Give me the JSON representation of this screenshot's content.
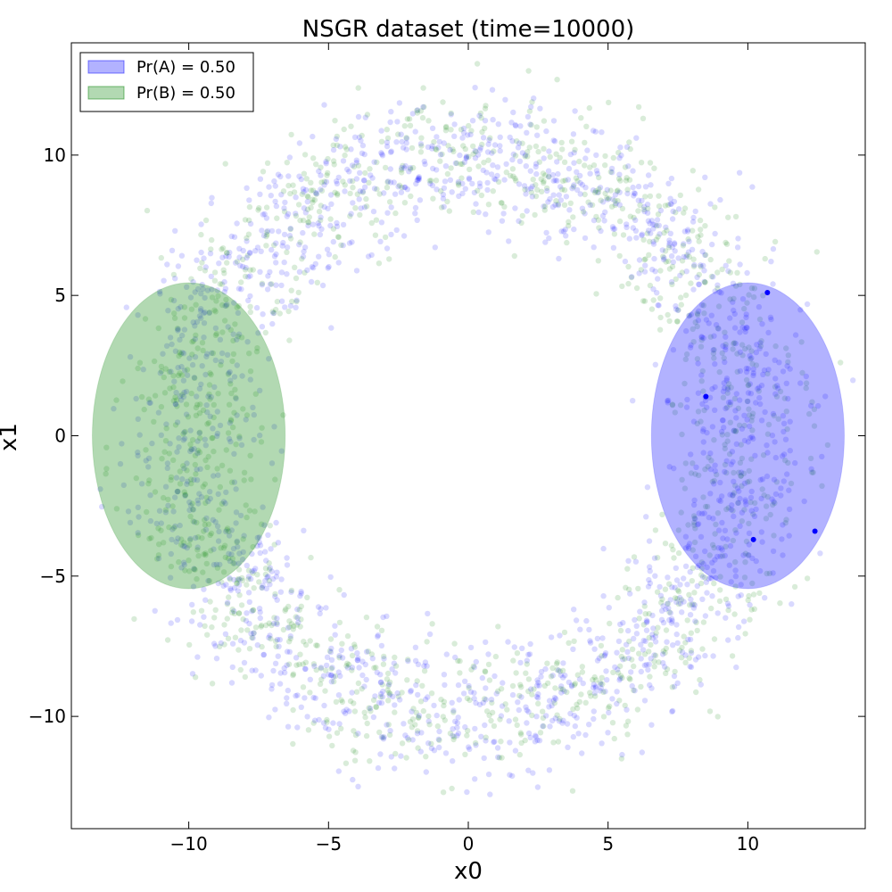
{
  "chart_data": {
    "type": "scatter",
    "title": "NSGR dataset (time=10000)",
    "xlabel": "x0",
    "ylabel": "x1",
    "xlim": [
      -14.2,
      14.2
    ],
    "ylim": [
      -14.0,
      14.0
    ],
    "x_ticks": [
      -10,
      -5,
      0,
      5,
      10
    ],
    "y_ticks": [
      -10,
      -5,
      0,
      5,
      10
    ],
    "x_tick_labels": [
      "−10",
      "−5",
      "0",
      "5",
      "10"
    ],
    "y_tick_labels": [
      "−10",
      "−5",
      "0",
      "5",
      "10"
    ],
    "grid": false,
    "legend_position": "top-left",
    "series": [
      {
        "name": "Pr(A) = 0.50",
        "color": "#0000ff",
        "ellipse": {
          "center": [
            10,
            0
          ],
          "width": 6.9,
          "height": 10.9,
          "opacity": 0.3
        },
        "scatter_alpha": 0.15
      },
      {
        "name": "Pr(B) = 0.50",
        "color": "#008000",
        "ellipse": {
          "center": [
            -10,
            0
          ],
          "width": 6.9,
          "height": 10.9,
          "opacity": 0.3
        },
        "scatter_alpha": 0.15
      }
    ],
    "ring": {
      "center": [
        0,
        0
      ],
      "mean_radius": 10.0,
      "radial_std": 1.2
    },
    "highlighted_points": [
      {
        "x": 10.7,
        "y": 5.1
      },
      {
        "x": 10.2,
        "y": -3.7
      },
      {
        "x": 8.5,
        "y": 1.4
      },
      {
        "x": 12.4,
        "y": -3.4
      }
    ]
  }
}
